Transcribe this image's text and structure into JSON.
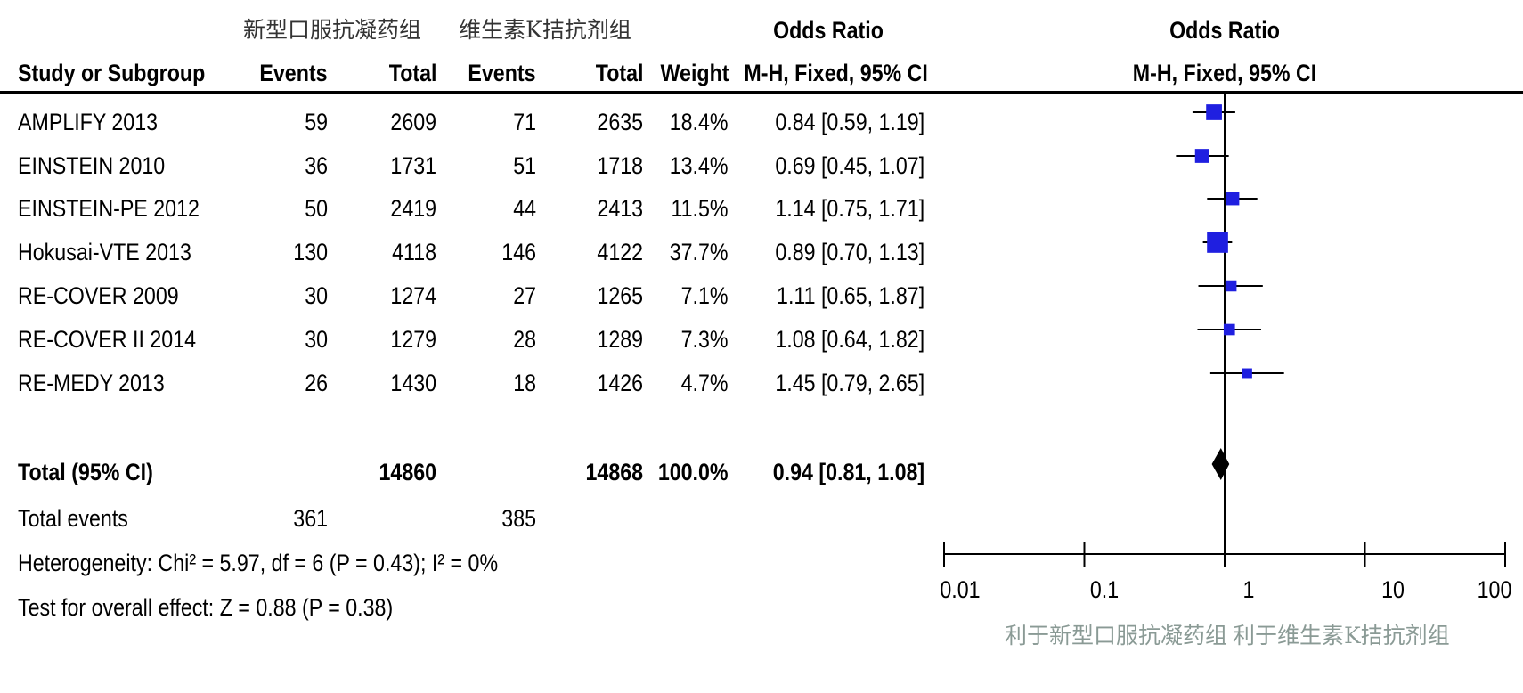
{
  "header": {
    "group_experimental": "新型口服抗凝药组",
    "group_control": "维生素K拮抗剂组",
    "or_title_table": "Odds Ratio",
    "or_title_plot": "Odds Ratio",
    "col_study": "Study or Subgroup",
    "col_events_exp": "Events",
    "col_total_exp": "Total",
    "col_events_ctl": "Events",
    "col_total_ctl": "Total",
    "col_weight": "Weight",
    "col_method_table": "M-H, Fixed, 95% CI",
    "col_method_plot": "M-H, Fixed, 95% CI"
  },
  "studies": [
    {
      "name": "AMPLIFY 2013",
      "events_exp": "59",
      "total_exp": "2609",
      "events_ctl": "71",
      "total_ctl": "2635",
      "weight": "18.4%",
      "ci_text": "0.84 [0.59, 1.19]"
    },
    {
      "name": "EINSTEIN 2010",
      "events_exp": "36",
      "total_exp": "1731",
      "events_ctl": "51",
      "total_ctl": "1718",
      "weight": "13.4%",
      "ci_text": "0.69 [0.45, 1.07]"
    },
    {
      "name": "EINSTEIN-PE 2012",
      "events_exp": "50",
      "total_exp": "2419",
      "events_ctl": "44",
      "total_ctl": "2413",
      "weight": "11.5%",
      "ci_text": "1.14 [0.75, 1.71]"
    },
    {
      "name": "Hokusai-VTE 2013",
      "events_exp": "130",
      "total_exp": "4118",
      "events_ctl": "146",
      "total_ctl": "4122",
      "weight": "37.7%",
      "ci_text": "0.89 [0.70, 1.13]"
    },
    {
      "name": "RE-COVER 2009",
      "events_exp": "30",
      "total_exp": "1274",
      "events_ctl": "27",
      "total_ctl": "1265",
      "weight": "7.1%",
      "ci_text": "1.11 [0.65, 1.87]"
    },
    {
      "name": "RE-COVER II 2014",
      "events_exp": "30",
      "total_exp": "1279",
      "events_ctl": "28",
      "total_ctl": "1289",
      "weight": "7.3%",
      "ci_text": "1.08 [0.64, 1.82]"
    },
    {
      "name": "RE-MEDY 2013",
      "events_exp": "26",
      "total_exp": "1430",
      "events_ctl": "18",
      "total_ctl": "1426",
      "weight": "4.7%",
      "ci_text": "1.45 [0.79, 2.65]"
    }
  ],
  "total": {
    "label": "Total (95% CI)",
    "total_exp": "14860",
    "total_ctl": "14868",
    "weight": "100.0%",
    "ci_text": "0.94 [0.81, 1.08]"
  },
  "total_events": {
    "label": "Total events",
    "events_exp": "361",
    "events_ctl": "385"
  },
  "heterogeneity": "Heterogeneity: Chi² = 5.97, df = 6 (P = 0.43); I² = 0%",
  "overall_effect": "Test for overall effect: Z = 0.88 (P = 0.38)",
  "axis": {
    "favours_experimental": "利于新型口服抗凝药组",
    "favours_control": "利于维生素K拮抗剂组"
  },
  "colors": {
    "study_marker": "#1f1fe0",
    "summary_marker": "#000000",
    "axis_label": "#8a9a95"
  },
  "chart_data": {
    "type": "forest",
    "scale": "log",
    "xlim": [
      0.01,
      100
    ],
    "ticks": [
      "0.01",
      "0.1",
      "1",
      "10",
      "100"
    ],
    "tick_values": [
      0.01,
      0.1,
      1,
      10,
      100
    ],
    "reference_line": 1,
    "points": [
      {
        "name": "AMPLIFY 2013",
        "or": 0.84,
        "lo": 0.59,
        "hi": 1.19,
        "weight": 18.4
      },
      {
        "name": "EINSTEIN 2010",
        "or": 0.69,
        "lo": 0.45,
        "hi": 1.07,
        "weight": 13.4
      },
      {
        "name": "EINSTEIN-PE 2012",
        "or": 1.14,
        "lo": 0.75,
        "hi": 1.71,
        "weight": 11.5
      },
      {
        "name": "Hokusai-VTE 2013",
        "or": 0.89,
        "lo": 0.7,
        "hi": 1.13,
        "weight": 37.7
      },
      {
        "name": "RE-COVER 2009",
        "or": 1.11,
        "lo": 0.65,
        "hi": 1.87,
        "weight": 7.1
      },
      {
        "name": "RE-COVER II 2014",
        "or": 1.08,
        "lo": 0.64,
        "hi": 1.82,
        "weight": 7.3
      },
      {
        "name": "RE-MEDY 2013",
        "or": 1.45,
        "lo": 0.79,
        "hi": 2.65,
        "weight": 4.7
      }
    ],
    "summary": {
      "or": 0.94,
      "lo": 0.81,
      "hi": 1.08
    }
  }
}
